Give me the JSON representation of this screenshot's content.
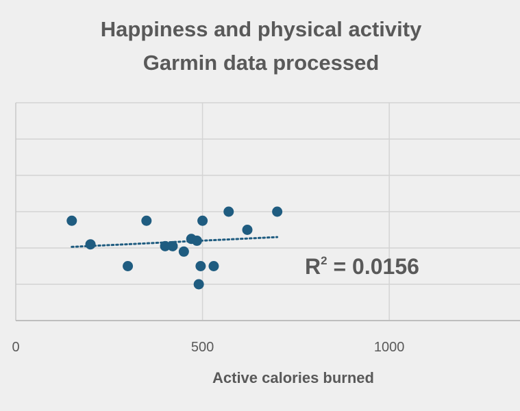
{
  "chart_data": {
    "type": "scatter",
    "title": [
      "Happiness and physical activity",
      "Garmin data processed"
    ],
    "xlabel": "Active calories burned",
    "ylabel": "",
    "xlim": [
      0,
      1350
    ],
    "ylim": [
      0,
      6
    ],
    "x_ticks": [
      0,
      500,
      1000
    ],
    "y_gridlines": [
      1,
      2,
      3,
      4,
      5,
      6
    ],
    "grid": true,
    "legend": "none",
    "series": [
      {
        "color": "#1f5c80",
        "points": [
          {
            "x": 150,
            "y": 2.75
          },
          {
            "x": 200,
            "y": 2.1
          },
          {
            "x": 300,
            "y": 1.5
          },
          {
            "x": 350,
            "y": 2.75
          },
          {
            "x": 400,
            "y": 2.05
          },
          {
            "x": 420,
            "y": 2.05
          },
          {
            "x": 450,
            "y": 1.9
          },
          {
            "x": 470,
            "y": 2.25
          },
          {
            "x": 485,
            "y": 2.2
          },
          {
            "x": 490,
            "y": 1.0
          },
          {
            "x": 495,
            "y": 1.5
          },
          {
            "x": 500,
            "y": 2.75
          },
          {
            "x": 530,
            "y": 1.5
          },
          {
            "x": 570,
            "y": 3.0
          },
          {
            "x": 620,
            "y": 2.5
          },
          {
            "x": 700,
            "y": 3.0
          }
        ]
      }
    ],
    "trendline": {
      "type": "linear",
      "style": "dotted",
      "color": "#1f5c80",
      "x_start": 150,
      "y_start": 2.03,
      "x_end": 700,
      "y_end": 2.3,
      "label": {
        "prefix": "R",
        "superscript": "2",
        "suffix": " = 0.0156"
      }
    }
  }
}
